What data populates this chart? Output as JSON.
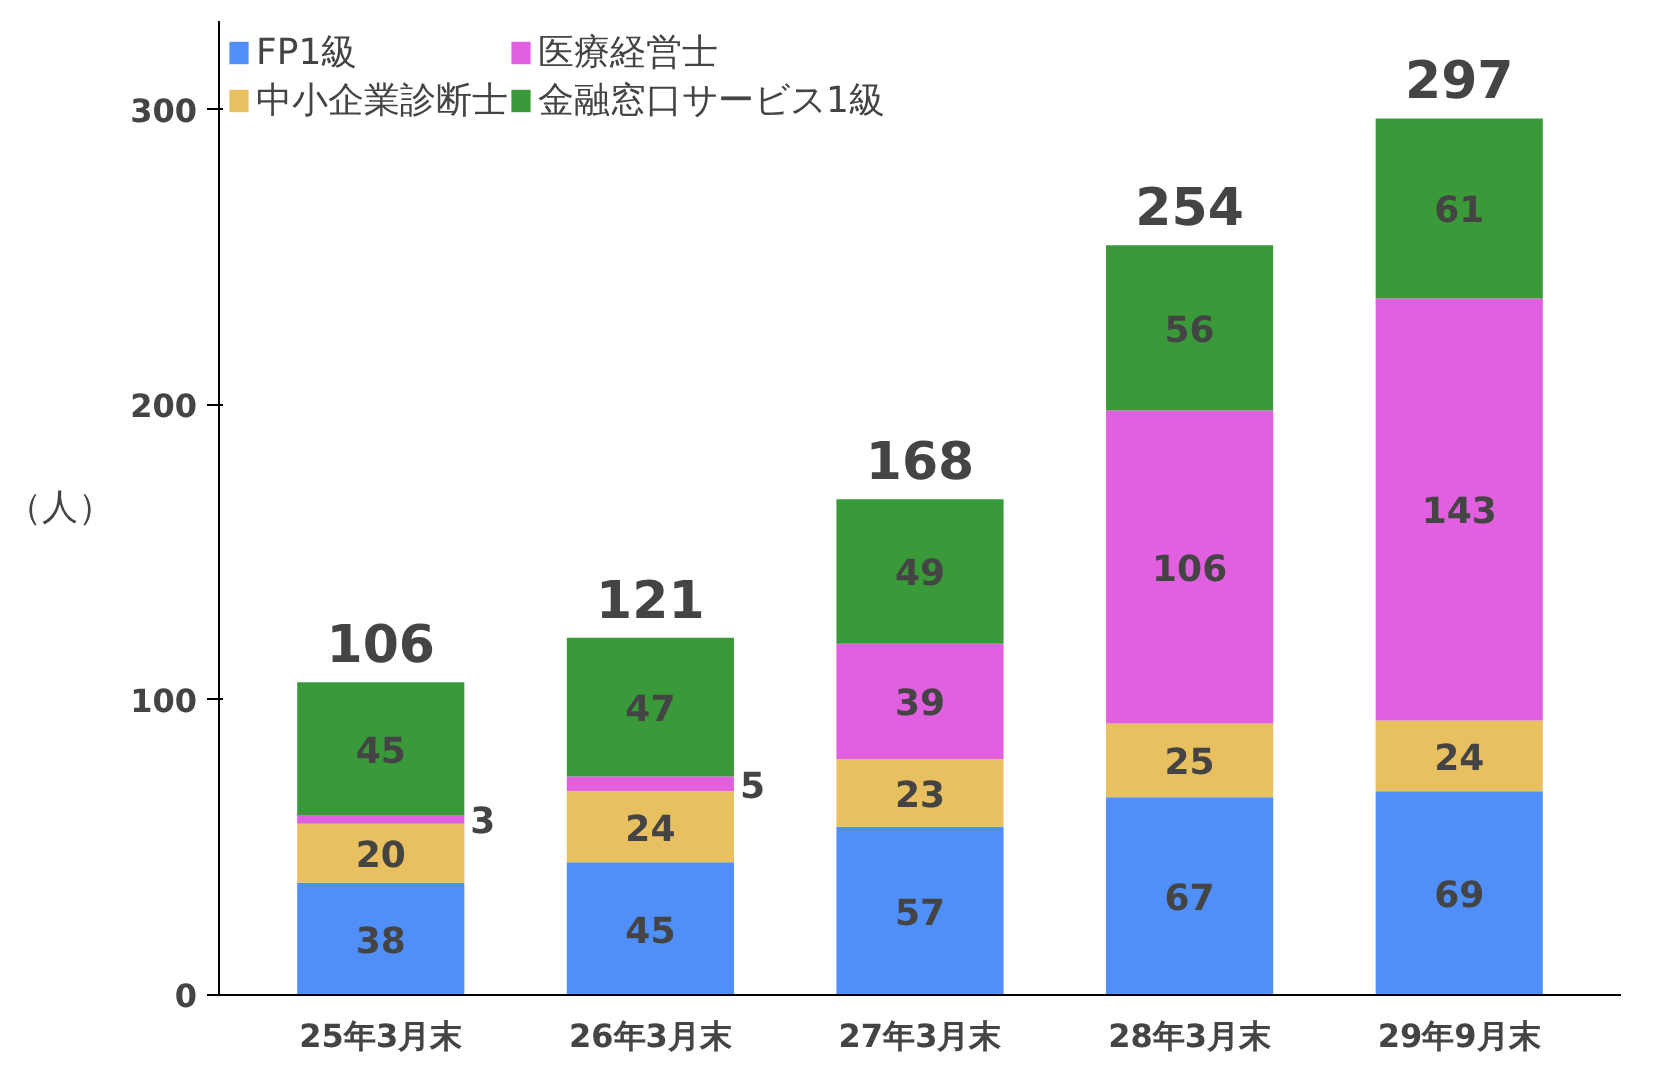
{
  "chart_data": {
    "type": "bar",
    "stacked": true,
    "ylabel": "（人）",
    "categories": [
      "25年3月末",
      "26年3月末",
      "27年3月末",
      "28年3月末",
      "29年9月末"
    ],
    "series": [
      {
        "name": "FP1級",
        "color": "#4f8ff7",
        "values": [
          38,
          45,
          57,
          67,
          69
        ]
      },
      {
        "name": "中小企業診断士",
        "color": "#e8c060",
        "values": [
          20,
          24,
          23,
          25,
          24
        ]
      },
      {
        "name": "医療経営士",
        "color": "#e060e0",
        "values": [
          3,
          5,
          39,
          106,
          143
        ]
      },
      {
        "name": "金融窓口サービス1級",
        "color": "#3a9a3a",
        "values": [
          45,
          47,
          49,
          56,
          61
        ]
      }
    ],
    "totals": [
      "106",
      "121",
      "168",
      "254",
      "297"
    ],
    "data_labels": true,
    "ylim": [
      0,
      330
    ],
    "yticks": [
      0,
      100,
      200,
      300
    ],
    "grid": false,
    "legend": "top"
  }
}
